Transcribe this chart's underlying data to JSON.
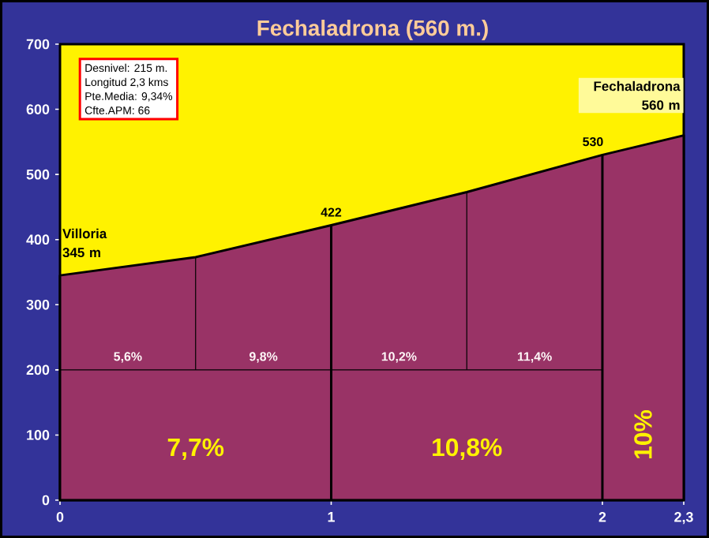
{
  "chart_data": {
    "type": "area",
    "title": "Fechaladrona (560 m.)",
    "x": [
      0,
      0.5,
      1,
      1.5,
      2,
      2.3
    ],
    "series": [
      {
        "color": "#993366",
        "values": [
          345,
          373,
          422,
          473,
          530,
          560
        ]
      }
    ],
    "xlim": [
      0,
      2.3
    ],
    "ylim": [
      0,
      700
    ],
    "xticks": [
      0,
      1,
      2,
      {
        "value": 2.3,
        "label": "2,3"
      }
    ],
    "yticks": [
      0,
      100,
      200,
      300,
      400,
      500,
      600,
      700
    ],
    "ref_lines": [
      {
        "axis": "x",
        "value": 0.5,
        "color": "#000000"
      },
      {
        "axis": "x",
        "value": 1,
        "color": "#000000"
      },
      {
        "axis": "x",
        "value": 1.5,
        "color": "#000000"
      },
      {
        "axis": "x",
        "value": 2,
        "color": "#000000"
      },
      {
        "axis": "y",
        "value": 200,
        "color": "#000000"
      }
    ],
    "annotations": [
      "Desnivel: 215 m.",
      "Longitud 2,3 kms",
      "Pte.Media: 9,34%",
      "Cfte.APM: 66",
      {
        "text": "Villoria 345 m",
        "x": 0,
        "y": 345
      },
      {
        "text": "422",
        "x": 1,
        "y": 422
      },
      {
        "text": "530",
        "x": 2,
        "y": 530
      },
      {
        "text": "Fechaladrona 560 m",
        "x": 2.3,
        "y": 560
      },
      {
        "text": "5,6%",
        "x": 0.25,
        "y": 200
      },
      {
        "text": "9,8%",
        "x": 0.75,
        "y": 200
      },
      {
        "text": "10,2%",
        "x": 1.25,
        "y": 200
      },
      {
        "text": "11,4%",
        "x": 1.75,
        "y": 200
      },
      {
        "text": "7,7%",
        "x": 0.5,
        "y": 0
      },
      {
        "text": "10,8%",
        "x": 1.5,
        "y": 0
      },
      {
        "text": "10%",
        "x": 2.15,
        "y": 0
      }
    ],
    "marker": "none"
  }
}
